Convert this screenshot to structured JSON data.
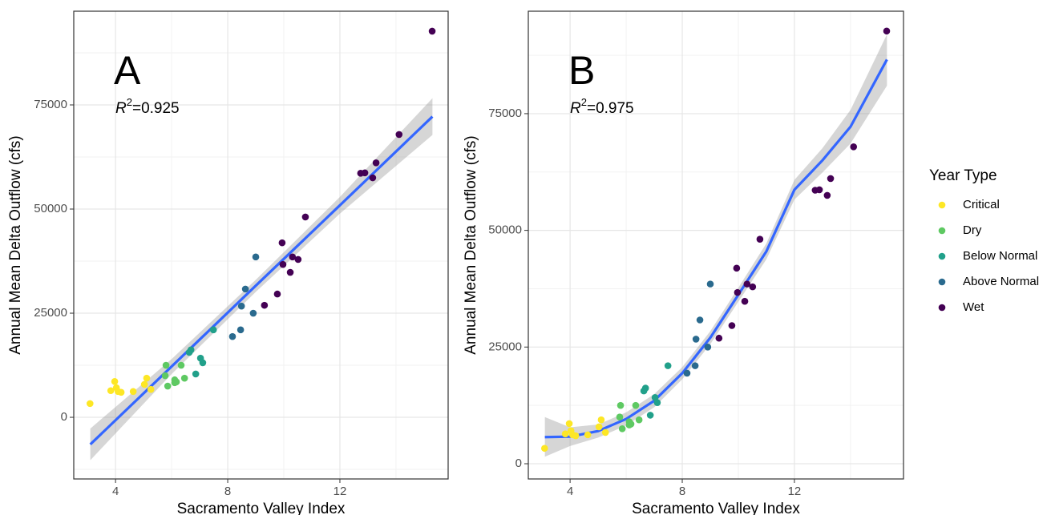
{
  "chart_data": [
    {
      "type": "scatter",
      "panel_label": "A",
      "r2": {
        "symbol": "R",
        "exponent": "2",
        "text": "=0.925"
      },
      "x_label": "Sacramento Valley Index",
      "y_label": "Annual Mean Delta Outflow (cfs)",
      "xlim": [
        2.51,
        15.86
      ],
      "ylim": [
        -14800,
        97500
      ],
      "xticks": [
        4,
        8,
        12
      ],
      "yticks": [
        0,
        25000,
        50000,
        75000
      ],
      "minor_xticks": [
        6,
        10,
        14
      ],
      "minor_yticks": [
        -12500,
        12500,
        37500,
        62500,
        87500
      ],
      "grid": true,
      "series": [
        {
          "name": "Critical",
          "color": "#FDE725",
          "x": [
            3.09,
            3.83,
            3.97,
            4.03,
            4.09,
            4.2,
            4.63,
            5.03,
            5.11,
            5.26
          ],
          "values": [
            3300,
            6400,
            8600,
            7100,
            6200,
            6000,
            6200,
            7900,
            9400,
            6700
          ]
        },
        {
          "name": "Dry",
          "color": "#5EC962",
          "x": [
            5.77,
            5.8,
            5.86,
            6.11,
            6.11,
            6.17,
            6.34,
            6.46
          ],
          "values": [
            10000,
            12500,
            7500,
            9000,
            8300,
            8500,
            12500,
            9400
          ]
        },
        {
          "name": "Below Normal",
          "color": "#21A08A",
          "x": [
            6.63,
            6.69,
            6.86,
            7.03,
            7.11,
            7.49
          ],
          "values": [
            15600,
            16200,
            10400,
            14200,
            13100,
            21000
          ]
        },
        {
          "name": "Above Normal",
          "color": "#2A6A8E",
          "x": [
            8.17,
            8.46,
            8.49,
            8.63,
            8.91,
            9.0
          ],
          "values": [
            19400,
            21000,
            26700,
            30800,
            25000,
            38500
          ]
        },
        {
          "name": "Wet",
          "color": "#440154",
          "x": [
            9.31,
            9.77,
            9.94,
            9.97,
            10.23,
            10.31,
            10.51,
            10.77,
            12.74,
            12.89,
            13.17,
            13.29,
            14.11,
            15.29
          ],
          "values": [
            26900,
            29600,
            41900,
            36700,
            34800,
            38500,
            37900,
            48100,
            58600,
            58700,
            57500,
            61100,
            67900,
            92700
          ]
        }
      ],
      "fit": {
        "color": "#3366FF",
        "x": [
          3.1,
          6,
          9,
          12,
          15.3
        ],
        "values": [
          -6500,
          12200,
          31600,
          50900,
          72200
        ],
        "lower": [
          -10300,
          10400,
          30100,
          48900,
          67800
        ],
        "upper": [
          -2700,
          14000,
          33000,
          52900,
          76600
        ]
      }
    },
    {
      "type": "scatter",
      "panel_label": "B",
      "r2": {
        "symbol": "R",
        "exponent": "2",
        "text": "=0.975"
      },
      "x_label": "Sacramento Valley Index",
      "y_label": "Annual Mean Delta Outflow (cfs)",
      "xlim": [
        2.51,
        15.89
      ],
      "ylim": [
        -3260,
        96950
      ],
      "xticks": [
        4,
        8,
        12
      ],
      "yticks": [
        0,
        25000,
        50000,
        75000
      ],
      "minor_xticks": [
        6,
        10,
        14
      ],
      "minor_yticks": [
        12500,
        37500,
        62500,
        87500
      ],
      "grid": true,
      "series": [
        {
          "name": "Critical",
          "color": "#FDE725",
          "x": [
            3.09,
            3.83,
            3.97,
            4.03,
            4.09,
            4.2,
            4.63,
            5.03,
            5.11,
            5.26
          ],
          "values": [
            3300,
            6400,
            8600,
            7100,
            6200,
            6000,
            6200,
            7900,
            9400,
            6700
          ]
        },
        {
          "name": "Dry",
          "color": "#5EC962",
          "x": [
            5.77,
            5.8,
            5.86,
            6.11,
            6.11,
            6.17,
            6.34,
            6.46
          ],
          "values": [
            10000,
            12500,
            7500,
            9000,
            8300,
            8500,
            12500,
            9400
          ]
        },
        {
          "name": "Below Normal",
          "color": "#21A08A",
          "x": [
            6.63,
            6.69,
            6.86,
            7.03,
            7.11,
            7.49
          ],
          "values": [
            15600,
            16200,
            10400,
            14200,
            13100,
            21000
          ]
        },
        {
          "name": "Above Normal",
          "color": "#2A6A8E",
          "x": [
            8.17,
            8.46,
            8.49,
            8.63,
            8.91,
            9.0
          ],
          "values": [
            19400,
            21000,
            26700,
            30800,
            25000,
            38500
          ]
        },
        {
          "name": "Wet",
          "color": "#440154",
          "x": [
            9.31,
            9.77,
            9.94,
            9.97,
            10.23,
            10.31,
            10.51,
            10.77,
            12.74,
            12.89,
            13.17,
            13.29,
            14.11,
            15.29
          ],
          "values": [
            26900,
            29600,
            41900,
            36700,
            34800,
            38500,
            37900,
            48100,
            58600,
            58700,
            57500,
            61100,
            67900,
            92700
          ]
        }
      ],
      "fit": {
        "color": "#3366FF",
        "x": [
          3.1,
          4,
          5,
          6,
          7,
          8,
          9,
          10,
          11,
          12,
          13,
          14,
          15.3
        ],
        "values": [
          5700,
          5800,
          7000,
          9600,
          13500,
          19400,
          27000,
          36200,
          45500,
          58700,
          65000,
          72200,
          86600
        ],
        "lower": [
          1500,
          3800,
          5600,
          8200,
          12100,
          18100,
          25600,
          34700,
          43800,
          56600,
          62400,
          68600,
          81000
        ],
        "upper": [
          10000,
          7800,
          8400,
          11000,
          14900,
          20700,
          28400,
          37700,
          47200,
          60800,
          67600,
          75800,
          92000
        ]
      }
    }
  ],
  "legend": {
    "title": "Year Type"
  }
}
